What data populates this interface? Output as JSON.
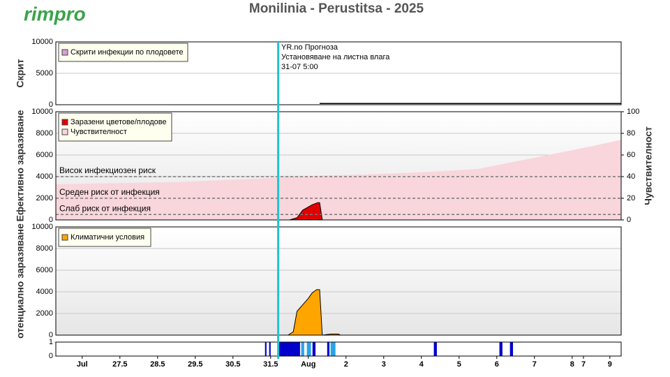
{
  "header": {
    "logo": "rimpro",
    "title": "Monilinia - Perustitsa - 2025"
  },
  "chart_data": [
    {
      "type": "line",
      "ylabel": "Скрит",
      "xlim": [
        25.8,
        40.8
      ],
      "ylim": [
        0,
        10000
      ],
      "yticks": [
        0,
        5000,
        10000
      ],
      "grid": true,
      "forecast_start": 31.7,
      "annotation": [
        "YR.no Прогноза",
        "Установяване на листна влага",
        "31-07 5:00"
      ],
      "series": [
        {
          "name": "Скрити инфекции по плодовете",
          "color": "#d8a0d4",
          "line_color": "#000000",
          "x": [
            32.8,
            40.8
          ],
          "values": [
            200,
            200
          ]
        }
      ]
    },
    {
      "type": "area",
      "ylabel": "Ефективно заразяване",
      "y2label": "Чувствителност",
      "xlim": [
        25.8,
        40.8
      ],
      "ylim": [
        0,
        10000
      ],
      "yticks": [
        0,
        2000,
        4000,
        6000,
        8000,
        10000
      ],
      "y2lim": [
        0,
        100
      ],
      "y2ticks": [
        0,
        20,
        40,
        60,
        80,
        100
      ],
      "grid": true,
      "forecast_start": 31.7,
      "thresholds": [
        {
          "value": 4000,
          "label": "Висок инфекциозен риск"
        },
        {
          "value": 2000,
          "label": "Среден риск от инфекция"
        },
        {
          "value": 500,
          "label": "Слаб риск от инфекция"
        }
      ],
      "series": [
        {
          "name": "Заразени цветове/плодове",
          "color": "#e00000",
          "x": [
            32.0,
            32.2,
            32.35,
            32.5,
            32.6,
            32.75,
            32.8,
            32.87
          ],
          "values": [
            0,
            200,
            900,
            1200,
            1400,
            1600,
            1600,
            0
          ]
        },
        {
          "name": "Чувствителност",
          "color": "#f8d6dc",
          "axis": "y2",
          "x": [
            25.8,
            29,
            31.7,
            32.8,
            34,
            35.5,
            37,
            38,
            39,
            40,
            40.8
          ],
          "values": [
            33,
            35,
            39,
            41,
            42,
            44,
            47,
            54,
            61,
            68,
            74
          ]
        }
      ]
    },
    {
      "type": "area",
      "ylabel": "отенциално заразяване",
      "xlim": [
        25.8,
        40.8
      ],
      "ylim": [
        0,
        10000
      ],
      "yticks": [
        0,
        2000,
        4000,
        6000,
        8000,
        10000
      ],
      "grid": true,
      "forecast_start": 31.7,
      "series": [
        {
          "name": "Климатични условия",
          "color": "#ffa500",
          "x": [
            31.96,
            32.1,
            32.2,
            32.35,
            32.5,
            32.6,
            32.72,
            32.8,
            32.87,
            33.1,
            33.3,
            33.35
          ],
          "values": [
            0,
            300,
            2200,
            2800,
            3400,
            3900,
            4200,
            4200,
            0,
            100,
            100,
            0
          ]
        }
      ]
    },
    {
      "type": "bar",
      "xlim": [
        25.8,
        40.8
      ],
      "ylim": [
        0,
        1
      ],
      "yticks": [
        0,
        1
      ],
      "forecast_start": 31.7,
      "x_start": [
        31.35,
        31.46,
        31.7,
        32.31,
        32.46,
        32.61,
        33.0,
        33.09,
        35.83,
        37.57,
        37.85
      ],
      "x_end": [
        31.39,
        31.5,
        32.28,
        32.39,
        32.57,
        32.69,
        33.06,
        33.22,
        35.91,
        37.65,
        37.93
      ],
      "values": [
        1,
        1,
        1,
        1,
        1,
        1,
        1,
        1,
        1,
        1,
        1
      ],
      "colors": [
        "#0000cc",
        "#0000cc",
        "#0000cc",
        "#29a3e8",
        "#29a3e8",
        "#0000cc",
        "#0000cc",
        "#29a3e8",
        "#0000cc",
        "#0000cc",
        "#0000cc"
      ],
      "xticks": [
        {
          "value": 26.5,
          "label": "Jul"
        },
        27.5,
        28.5,
        29.5,
        30.5,
        31.5,
        {
          "value": 32.5,
          "label": "Aug"
        },
        {
          "value": 33.5,
          "label": "2"
        },
        {
          "value": 34.5,
          "label": "3"
        },
        {
          "value": 35.5,
          "label": "4"
        },
        {
          "value": 36.5,
          "label": "5"
        },
        {
          "value": 37.5,
          "label": "6"
        },
        {
          "value": 38.5,
          "label": "7"
        },
        {
          "value": 39.5,
          "label": "8"
        },
        {
          "value": 39.8,
          "label": "7"
        },
        {
          "value": 40.5,
          "label": "9"
        }
      ]
    }
  ]
}
